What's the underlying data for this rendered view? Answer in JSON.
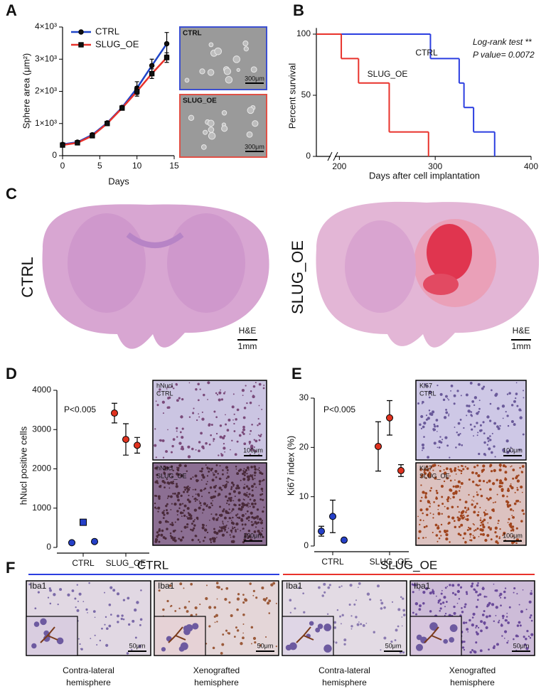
{
  "panel_labels": [
    "A",
    "B",
    "C",
    "D",
    "E",
    "F"
  ],
  "chart_data": [
    {
      "type": "line",
      "y_label": "Sphere area (μm²)",
      "x_label": "Days",
      "x": [
        0,
        2,
        4,
        6,
        8,
        10,
        12,
        14
      ],
      "series": [
        {
          "name": "CTRL",
          "color": "#1f45c8",
          "marker": "circle",
          "values": [
            350,
            420,
            650,
            1020,
            1500,
            2100,
            2800,
            3480
          ],
          "errors": [
            40,
            40,
            50,
            50,
            50,
            200,
            200,
            350
          ]
        },
        {
          "name": "SLUG_OE",
          "color": "#e8322b",
          "marker": "square",
          "values": [
            330,
            400,
            620,
            1000,
            1480,
            2000,
            2550,
            3050
          ],
          "errors": [
            40,
            40,
            50,
            50,
            40,
            150,
            150,
            150
          ]
        }
      ],
      "xlim": [
        0,
        15
      ],
      "xticks": [
        0,
        5,
        10,
        15
      ],
      "ylim": [
        0,
        4000
      ],
      "yticks": [
        0,
        {
          "value": 1000,
          "label": "1×10³"
        },
        {
          "value": 2000,
          "label": "2×10³"
        },
        {
          "value": 3000,
          "label": "3×10³"
        },
        {
          "value": 4000,
          "label": "4×10³"
        }
      ],
      "legend": "upper-left"
    },
    {
      "type": "step",
      "y_label": "Percent survival",
      "x_label": "Days after cell implantation",
      "annotations": [
        "Log-rank test **",
        "P value= 0.0072"
      ],
      "series": [
        {
          "name": "CTRL",
          "color": "#2b3ee0",
          "x": [
            176,
            295,
            325,
            330,
            340,
            362
          ],
          "values": [
            100,
            80,
            60,
            40,
            20,
            0
          ]
        },
        {
          "name": "SLUG_OE",
          "color": "#e8322b",
          "x": [
            176,
            202,
            220,
            252,
            293
          ],
          "values": [
            100,
            80,
            60,
            20,
            0
          ]
        }
      ],
      "xlim": [
        176,
        400
      ],
      "xticks": [
        200,
        300,
        400
      ],
      "ylim": [
        0,
        105
      ],
      "yticks": [
        0,
        50,
        100
      ],
      "axis_break": true
    },
    {
      "type": "dot",
      "y_label": "hNucl positive cells",
      "annotation": "P<0.005",
      "categories": [
        "CTRL",
        "SLUG_OE"
      ],
      "colors": [
        "#2540c8",
        "#e0321f"
      ],
      "markers": [
        [
          "circle",
          "square",
          "circle"
        ],
        [
          "circle",
          "circle",
          "circle"
        ]
      ],
      "values": [
        [
          120,
          640,
          150
        ],
        [
          3420,
          2750,
          2600
        ]
      ],
      "errors": [
        [
          null,
          null,
          null
        ],
        [
          250,
          400,
          200
        ]
      ],
      "ylim": [
        0,
        4000
      ],
      "yticks": [
        0,
        1000,
        2000,
        3000,
        4000
      ]
    },
    {
      "type": "dot",
      "y_label": "Ki67 index (%)",
      "annotation": "P<0.005",
      "categories": [
        "CTRL",
        "SLUG_OE"
      ],
      "colors": [
        "#2540c8",
        "#e0321f"
      ],
      "markers": [
        [
          "circle",
          "circle",
          "circle"
        ],
        [
          "circle",
          "circle",
          "circle"
        ]
      ],
      "values": [
        [
          3,
          6,
          1.2
        ],
        [
          20.2,
          26,
          15.3
        ]
      ],
      "errors": [
        [
          1,
          3.3,
          null
        ],
        [
          5,
          3.5,
          1.2
        ]
      ],
      "ylim": [
        0,
        30
      ],
      "yticks": [
        0,
        10,
        20,
        30
      ]
    }
  ],
  "images": {
    "a": [
      {
        "label": "CTRL",
        "scale": "300μm",
        "border": "#3b4fd1"
      },
      {
        "label": "SLUG_OE",
        "scale": "300μm",
        "border": "#e05045"
      }
    ],
    "c": [
      {
        "label": "CTRL",
        "stain": "H&E",
        "scale": "1mm",
        "color": "#2b3ee0"
      },
      {
        "label": "SLUG_OE",
        "stain": "H&E",
        "scale": "1mm",
        "color": "#e8322b"
      }
    ],
    "d": [
      {
        "marker": "hNucl",
        "label": "CTRL",
        "scale": "100μm"
      },
      {
        "marker": "hNucl",
        "label": "SLUG_OE",
        "scale": "100μm"
      }
    ],
    "e": [
      {
        "marker": "Ki67",
        "label": "CTRL",
        "scale": "100μm"
      },
      {
        "marker": "Ki67",
        "label": "SLUG_OE",
        "scale": "100μm"
      }
    ],
    "f": {
      "groups": [
        {
          "label": "CTRL",
          "color": "#2b3ee0"
        },
        {
          "label": "SLUG_OE",
          "color": "#e8322b"
        }
      ],
      "images": [
        {
          "marker": "Iba1",
          "scale": "50μm",
          "caption": [
            "Contra-lateral",
            "hemisphere"
          ]
        },
        {
          "marker": "Iba1",
          "scale": "50μm",
          "caption": [
            "Xenografted",
            "hemisphere"
          ]
        },
        {
          "marker": "Iba1",
          "scale": "50μm",
          "caption": [
            "Contra-lateral",
            "hemisphere"
          ]
        },
        {
          "marker": "Iba1",
          "scale": "50μm",
          "caption": [
            "Xenografted",
            "hemisphere"
          ]
        }
      ]
    }
  }
}
